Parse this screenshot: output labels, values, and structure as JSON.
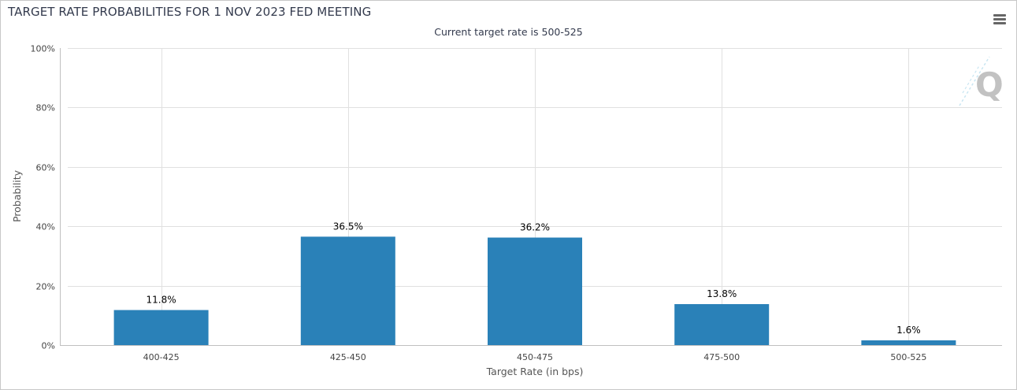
{
  "title": "TARGET RATE PROBABILITIES FOR 1 NOV 2023 FED MEETING",
  "subtitle": "Current target rate is 500-525",
  "menu_icon": "hamburger-menu-icon",
  "watermark_icon": "q-logo-icon",
  "colors": {
    "bar": "#2a81b8",
    "grid": "#e0e0e0",
    "axis": "#c0c0c0"
  },
  "chart_data": {
    "type": "bar",
    "title": "TARGET RATE PROBABILITIES FOR 1 NOV 2023 FED MEETING",
    "subtitle": "Current target rate is 500-525",
    "categories": [
      "400-425",
      "425-450",
      "450-475",
      "475-500",
      "500-525"
    ],
    "values": [
      11.8,
      36.5,
      36.2,
      13.8,
      1.6
    ],
    "data_labels": [
      "11.8%",
      "36.5%",
      "36.2%",
      "13.8%",
      "1.6%"
    ],
    "xlabel": "Target Rate (in bps)",
    "ylabel": "Probability",
    "ylim": [
      0,
      100
    ],
    "yticks": [
      0,
      20,
      40,
      60,
      80,
      100
    ],
    "ytick_labels": [
      "0%",
      "20%",
      "40%",
      "60%",
      "80%",
      "100%"
    ],
    "grid": true,
    "legend": false
  }
}
